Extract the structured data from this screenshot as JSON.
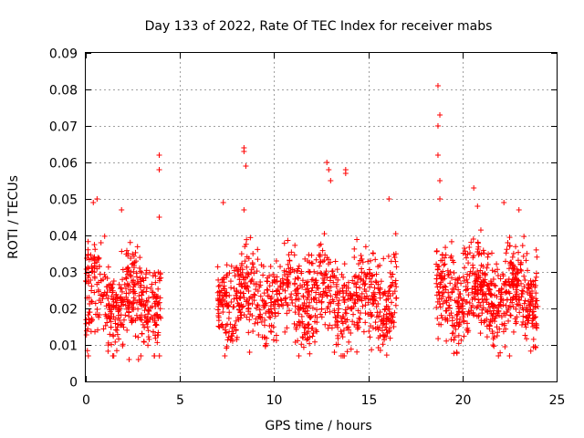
{
  "chart_data": {
    "type": "scatter",
    "title": "Day 133 of 2022, Rate Of TEC Index for receiver mabs",
    "xlabel": "GPS time / hours",
    "ylabel": "ROTI / TECUs",
    "xlim": [
      0,
      25
    ],
    "ylim": [
      0,
      0.09
    ],
    "x_ticks": [
      0,
      5,
      10,
      15,
      20,
      25
    ],
    "x_tick_labels": [
      "0",
      "5",
      "10",
      "15",
      "20",
      "25"
    ],
    "y_ticks": [
      0,
      0.01,
      0.02,
      0.03,
      0.04,
      0.05,
      0.06,
      0.07,
      0.08,
      0.09
    ],
    "y_tick_labels": [
      "0",
      "0.01",
      "0.02",
      "0.03",
      "0.04",
      "0.05",
      "0.06",
      "0.07",
      "0.08",
      "0.09"
    ],
    "grid": true,
    "marker": "+",
    "series_color": "#ff0000",
    "series": [
      {
        "name": "ROTI",
        "clusters": [
          {
            "x_range": [
              0.0,
              4.0
            ],
            "y_center": 0.022,
            "y_spread": 0.008,
            "count": 420
          },
          {
            "x_range": [
              7.0,
              16.5
            ],
            "y_center": 0.023,
            "y_spread": 0.008,
            "count": 900
          },
          {
            "x_range": [
              18.6,
              24.0
            ],
            "y_center": 0.024,
            "y_spread": 0.008,
            "count": 620
          }
        ],
        "notable_points": [
          {
            "x": 0.4,
            "y": 0.049
          },
          {
            "x": 0.6,
            "y": 0.05
          },
          {
            "x": 1.9,
            "y": 0.047
          },
          {
            "x": 3.9,
            "y": 0.062
          },
          {
            "x": 3.9,
            "y": 0.058
          },
          {
            "x": 3.9,
            "y": 0.045
          },
          {
            "x": 7.3,
            "y": 0.049
          },
          {
            "x": 8.4,
            "y": 0.064
          },
          {
            "x": 8.4,
            "y": 0.063
          },
          {
            "x": 8.5,
            "y": 0.059
          },
          {
            "x": 8.4,
            "y": 0.047
          },
          {
            "x": 12.8,
            "y": 0.06
          },
          {
            "x": 12.9,
            "y": 0.058
          },
          {
            "x": 13.0,
            "y": 0.055
          },
          {
            "x": 13.8,
            "y": 0.058
          },
          {
            "x": 13.8,
            "y": 0.057
          },
          {
            "x": 16.1,
            "y": 0.05
          },
          {
            "x": 18.7,
            "y": 0.081
          },
          {
            "x": 18.8,
            "y": 0.073
          },
          {
            "x": 18.7,
            "y": 0.07
          },
          {
            "x": 18.7,
            "y": 0.062
          },
          {
            "x": 18.8,
            "y": 0.055
          },
          {
            "x": 18.8,
            "y": 0.05
          },
          {
            "x": 20.6,
            "y": 0.053
          },
          {
            "x": 20.8,
            "y": 0.048
          },
          {
            "x": 22.2,
            "y": 0.049
          },
          {
            "x": 23.0,
            "y": 0.047
          },
          {
            "x": 2.3,
            "y": 0.006
          },
          {
            "x": 2.8,
            "y": 0.006
          },
          {
            "x": 8.7,
            "y": 0.008
          },
          {
            "x": 13.2,
            "y": 0.008
          },
          {
            "x": 19.7,
            "y": 0.008
          },
          {
            "x": 22.5,
            "y": 0.007
          }
        ]
      }
    ]
  }
}
